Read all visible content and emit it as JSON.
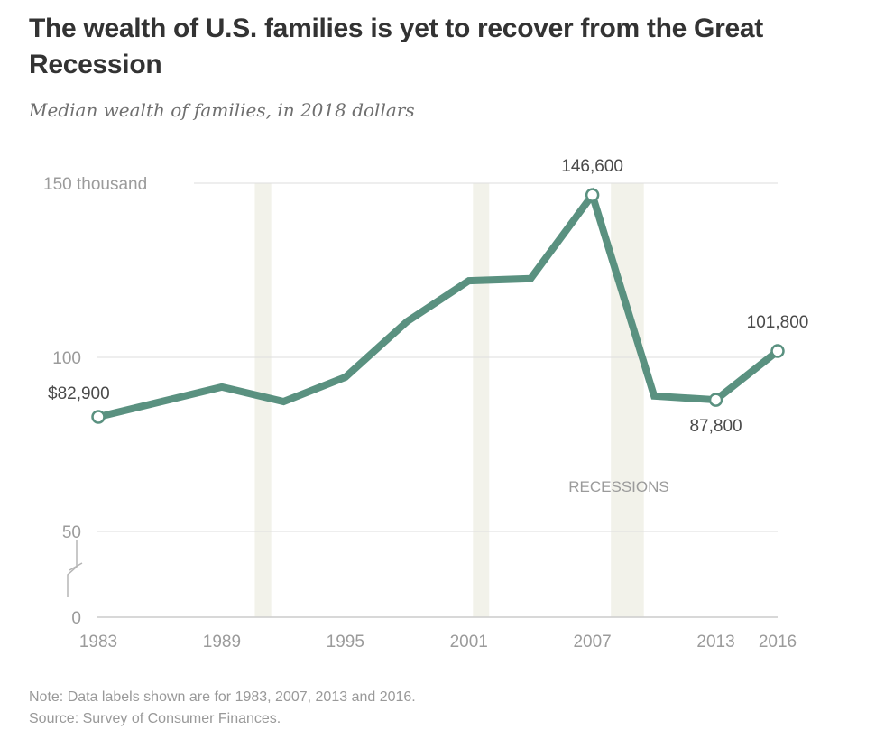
{
  "header": {
    "title": "The wealth of U.S. families is yet to recover from the Great Recession",
    "subtitle": "Median wealth of families, in 2018 dollars"
  },
  "footer": {
    "note": "Note: Data labels shown are for 1983, 2007, 2013 and 2016.",
    "source": "Source: Survey of Consumer Finances."
  },
  "colors": {
    "line": "#5a9180",
    "recession": "#f2f2ea",
    "grid": "#dedede",
    "baseline": "#cccccc"
  },
  "chart_data": {
    "type": "line",
    "title": "The wealth of U.S. families is yet to recover from the Great Recession",
    "subtitle": "Median wealth of families, in 2018 dollars",
    "xlabel": "",
    "ylabel": "",
    "unit": "thousand dollars",
    "x": [
      1983,
      1989,
      1992,
      1995,
      1998,
      2001,
      2004,
      2007,
      2010,
      2013,
      2016
    ],
    "series": [
      {
        "name": "Median wealth",
        "values": [
          82.9,
          91.5,
          87.3,
          94.3,
          110.3,
          122.0,
          122.6,
          146.6,
          88.9,
          87.8,
          101.8
        ]
      }
    ],
    "data_labels": [
      {
        "x": 1983,
        "text": "$82,900",
        "position": "above-left"
      },
      {
        "x": 2007,
        "text": "146,600",
        "position": "above"
      },
      {
        "x": 2013,
        "text": "87,800",
        "position": "below"
      },
      {
        "x": 2016,
        "text": "101,800",
        "position": "above"
      }
    ],
    "xticks": [
      1983,
      1989,
      1995,
      2001,
      2007,
      2013,
      2016
    ],
    "xtick_labels": [
      "1983",
      "1989",
      "1995",
      "2001",
      "2007",
      "2013",
      "2016"
    ],
    "yticks": [
      0,
      50,
      100,
      150
    ],
    "ytick_labels": [
      "0",
      "50",
      "100",
      "150 thousand"
    ],
    "ylim": [
      0,
      150
    ],
    "xlim": [
      1983,
      2016
    ],
    "axis_break": "between 0 and 50",
    "recessions": [
      [
        1990.6,
        1991.4
      ],
      [
        2001.2,
        2001.9
      ],
      [
        2007.9,
        2009.5
      ]
    ],
    "recession_label": "RECESSIONS",
    "grid": true,
    "legend": "none"
  }
}
